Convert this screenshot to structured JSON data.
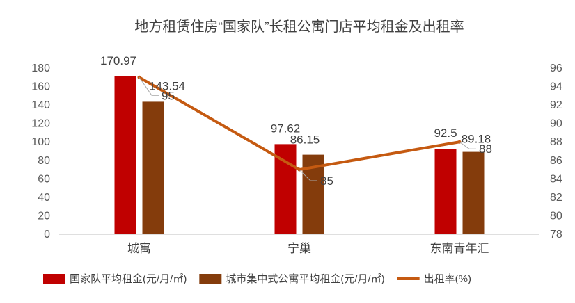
{
  "chart_data": {
    "type": "bar",
    "title": "地方租赁住房“国家队”长租公寓门店平均租金及出租率",
    "categories": [
      "城寓",
      "宁巢",
      "东南青年汇"
    ],
    "series": [
      {
        "name": "国家队平均租金(元/月/㎡)",
        "type": "bar",
        "axis": "left",
        "color": "#C00000",
        "values": [
          170.97,
          97.62,
          92.5
        ],
        "labels": [
          "170.97",
          "97.62",
          "92.5"
        ]
      },
      {
        "name": "城市集中式公寓平均租金(元/月/㎡)",
        "type": "bar",
        "axis": "left",
        "color": "#843C0C",
        "values": [
          143.54,
          86.15,
          89.18
        ],
        "labels": [
          "143.54",
          "86.15",
          "89.18"
        ]
      },
      {
        "name": "出租率(%)",
        "type": "line",
        "axis": "right",
        "color": "#C55A11",
        "values": [
          95,
          85,
          88
        ],
        "labels": [
          "95",
          "85",
          "88"
        ]
      }
    ],
    "y_left": {
      "min": 0,
      "max": 180,
      "step": 20,
      "ticks": [
        "0",
        "20",
        "40",
        "60",
        "80",
        "100",
        "120",
        "140",
        "160",
        "180"
      ]
    },
    "y_right": {
      "min": 78,
      "max": 96,
      "step": 2,
      "ticks": [
        "78",
        "80",
        "82",
        "84",
        "86",
        "88",
        "90",
        "92",
        "94",
        "96"
      ]
    },
    "grid": false,
    "legend_position": "bottom"
  }
}
